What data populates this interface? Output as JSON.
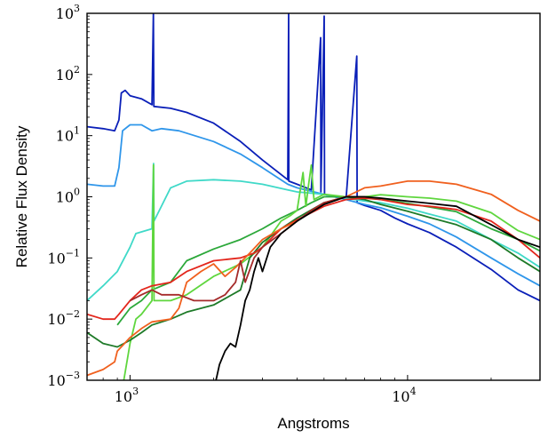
{
  "chart_data": {
    "type": "line",
    "title": "",
    "xlabel": "Angstroms",
    "ylabel": "Relative Flux Density",
    "x_scale": "log",
    "y_scale": "log",
    "xlim": [
      700,
      30000
    ],
    "ylim": [
      0.001,
      1000
    ],
    "grid": false,
    "legend": "none",
    "x_ticks": [
      {
        "value": 1000,
        "base": "10",
        "exp": "3"
      },
      {
        "value": 10000,
        "base": "10",
        "exp": "4"
      }
    ],
    "y_ticks": [
      {
        "value": 0.001,
        "base": "10",
        "exp": "−3"
      },
      {
        "value": 0.01,
        "base": "10",
        "exp": "−2"
      },
      {
        "value": 0.1,
        "base": "10",
        "exp": "−1"
      },
      {
        "value": 1,
        "base": "10",
        "exp": "0"
      },
      {
        "value": 10,
        "base": "10",
        "exp": "1"
      },
      {
        "value": 100,
        "base": "10",
        "exp": "2"
      },
      {
        "value": 1000,
        "base": "10",
        "exp": "3"
      }
    ],
    "series": [
      {
        "color": "#0a1fb8",
        "points": [
          [
            700,
            14
          ],
          [
            800,
            13
          ],
          [
            880,
            12
          ],
          [
            912,
            18
          ],
          [
            930,
            50
          ],
          [
            960,
            55
          ],
          [
            1000,
            45
          ],
          [
            1100,
            40
          ],
          [
            1200,
            32
          ],
          [
            1214,
            1000
          ],
          [
            1218,
            30
          ],
          [
            1400,
            28
          ],
          [
            1600,
            24
          ],
          [
            2000,
            16
          ],
          [
            2500,
            8
          ],
          [
            3000,
            4
          ],
          [
            3700,
            1.9
          ],
          [
            3727,
            1000
          ],
          [
            3735,
            1.8
          ],
          [
            4000,
            1.6
          ],
          [
            4500,
            1.3
          ],
          [
            4861,
            400
          ],
          [
            4870,
            1.2
          ],
          [
            5007,
            900
          ],
          [
            5020,
            1.1
          ],
          [
            5500,
            1
          ],
          [
            6000,
            0.9
          ],
          [
            6563,
            200
          ],
          [
            6580,
            0.8
          ],
          [
            7000,
            0.72
          ],
          [
            8000,
            0.6
          ],
          [
            9000,
            0.45
          ],
          [
            10000,
            0.36
          ],
          [
            12000,
            0.26
          ],
          [
            15000,
            0.15
          ],
          [
            20000,
            0.065
          ],
          [
            25000,
            0.03
          ],
          [
            30000,
            0.02
          ]
        ]
      },
      {
        "color": "#2f96ea",
        "points": [
          [
            700,
            1.6
          ],
          [
            800,
            1.5
          ],
          [
            880,
            1.5
          ],
          [
            912,
            3
          ],
          [
            940,
            12
          ],
          [
            1000,
            15
          ],
          [
            1100,
            15
          ],
          [
            1200,
            12
          ],
          [
            1300,
            13
          ],
          [
            1500,
            12
          ],
          [
            2000,
            8
          ],
          [
            2500,
            5
          ],
          [
            3000,
            3
          ],
          [
            3700,
            1.6
          ],
          [
            4000,
            1.4
          ],
          [
            5000,
            1.1
          ],
          [
            6000,
            0.9
          ],
          [
            7000,
            0.75
          ],
          [
            8000,
            0.66
          ],
          [
            10000,
            0.48
          ],
          [
            12000,
            0.36
          ],
          [
            15000,
            0.22
          ],
          [
            20000,
            0.1
          ],
          [
            25000,
            0.055
          ],
          [
            30000,
            0.035
          ]
        ]
      },
      {
        "color": "#3fd9c8",
        "points": [
          [
            700,
            0.02
          ],
          [
            800,
            0.035
          ],
          [
            900,
            0.06
          ],
          [
            1000,
            0.15
          ],
          [
            1050,
            0.25
          ],
          [
            1200,
            0.3
          ],
          [
            1216,
            3.5
          ],
          [
            1220,
            0.4
          ],
          [
            1400,
            1.4
          ],
          [
            1600,
            1.8
          ],
          [
            2000,
            1.9
          ],
          [
            2500,
            1.8
          ],
          [
            3000,
            1.6
          ],
          [
            3700,
            1.3
          ],
          [
            4000,
            1.2
          ],
          [
            5000,
            1.1
          ],
          [
            6000,
            0.95
          ],
          [
            7000,
            0.85
          ],
          [
            8000,
            0.8
          ],
          [
            10000,
            0.65
          ],
          [
            12000,
            0.52
          ],
          [
            15000,
            0.4
          ],
          [
            20000,
            0.2
          ],
          [
            25000,
            0.12
          ],
          [
            30000,
            0.07
          ]
        ]
      },
      {
        "color": "#2ca83a",
        "points": [
          [
            900,
            0.008
          ],
          [
            1000,
            0.015
          ],
          [
            1100,
            0.02
          ],
          [
            1200,
            0.03
          ],
          [
            1400,
            0.04
          ],
          [
            1600,
            0.09
          ],
          [
            2000,
            0.14
          ],
          [
            2500,
            0.2
          ],
          [
            3000,
            0.3
          ],
          [
            3500,
            0.45
          ],
          [
            4000,
            0.6
          ],
          [
            4500,
            0.8
          ],
          [
            5000,
            1
          ],
          [
            6000,
            1
          ],
          [
            7000,
            0.98
          ],
          [
            8000,
            0.93
          ],
          [
            10000,
            0.78
          ],
          [
            12000,
            0.68
          ],
          [
            15000,
            0.57
          ],
          [
            20000,
            0.3
          ],
          [
            25000,
            0.2
          ],
          [
            30000,
            0.13
          ]
        ]
      },
      {
        "color": "#5fd63e",
        "points": [
          [
            950,
            0.001
          ],
          [
            1000,
            0.004
          ],
          [
            1050,
            0.01
          ],
          [
            1100,
            0.012
          ],
          [
            1200,
            0.02
          ],
          [
            1215,
            3.3
          ],
          [
            1220,
            0.02
          ],
          [
            1400,
            0.02
          ],
          [
            1600,
            0.025
          ],
          [
            2000,
            0.05
          ],
          [
            2500,
            0.08
          ],
          [
            3000,
            0.15
          ],
          [
            3500,
            0.4
          ],
          [
            3800,
            0.5
          ],
          [
            4000,
            0.6
          ],
          [
            4200,
            2.5
          ],
          [
            4300,
            0.7
          ],
          [
            4400,
            1.6
          ],
          [
            4500,
            3.3
          ],
          [
            4600,
            0.9
          ],
          [
            5000,
            1.1
          ],
          [
            6000,
            1
          ],
          [
            7000,
            1
          ],
          [
            8000,
            1.08
          ],
          [
            10000,
            1
          ],
          [
            12000,
            0.95
          ],
          [
            15000,
            0.85
          ],
          [
            20000,
            0.55
          ],
          [
            25000,
            0.28
          ],
          [
            30000,
            0.2
          ]
        ]
      },
      {
        "color": "#1e7a28",
        "points": [
          [
            700,
            0.006
          ],
          [
            800,
            0.004
          ],
          [
            900,
            0.0035
          ],
          [
            1000,
            0.0045
          ],
          [
            1100,
            0.006
          ],
          [
            1200,
            0.008
          ],
          [
            1400,
            0.01
          ],
          [
            1600,
            0.013
          ],
          [
            2000,
            0.017
          ],
          [
            2500,
            0.03
          ],
          [
            2700,
            0.1
          ],
          [
            3000,
            0.18
          ],
          [
            3500,
            0.3
          ],
          [
            4000,
            0.45
          ],
          [
            5000,
            0.8
          ],
          [
            6000,
            1
          ],
          [
            7000,
            0.9
          ],
          [
            8000,
            0.75
          ],
          [
            10000,
            0.58
          ],
          [
            12000,
            0.46
          ],
          [
            15000,
            0.35
          ],
          [
            20000,
            0.2
          ],
          [
            25000,
            0.1
          ],
          [
            30000,
            0.06
          ]
        ]
      },
      {
        "color": "#e3261c",
        "points": [
          [
            700,
            0.012
          ],
          [
            800,
            0.01
          ],
          [
            880,
            0.01
          ],
          [
            912,
            0.012
          ],
          [
            1000,
            0.02
          ],
          [
            1100,
            0.03
          ],
          [
            1200,
            0.035
          ],
          [
            1400,
            0.04
          ],
          [
            1600,
            0.06
          ],
          [
            2000,
            0.09
          ],
          [
            2500,
            0.1
          ],
          [
            2800,
            0.12
          ],
          [
            3000,
            0.15
          ],
          [
            3500,
            0.3
          ],
          [
            4000,
            0.42
          ],
          [
            5000,
            0.7
          ],
          [
            6000,
            0.9
          ],
          [
            7000,
            0.95
          ],
          [
            8000,
            0.9
          ],
          [
            10000,
            0.75
          ],
          [
            12000,
            0.7
          ],
          [
            15000,
            0.62
          ],
          [
            20000,
            0.4
          ],
          [
            25000,
            0.2
          ],
          [
            30000,
            0.1
          ]
        ]
      },
      {
        "color": "#f0601e",
        "points": [
          [
            700,
            0.0012
          ],
          [
            800,
            0.0015
          ],
          [
            880,
            0.002
          ],
          [
            900,
            0.003
          ],
          [
            1000,
            0.005
          ],
          [
            1100,
            0.007
          ],
          [
            1200,
            0.009
          ],
          [
            1400,
            0.01
          ],
          [
            1500,
            0.015
          ],
          [
            1600,
            0.04
          ],
          [
            1800,
            0.06
          ],
          [
            2000,
            0.08
          ],
          [
            2200,
            0.05
          ],
          [
            2400,
            0.07
          ],
          [
            2700,
            0.12
          ],
          [
            3000,
            0.2
          ],
          [
            3500,
            0.3
          ],
          [
            4000,
            0.4
          ],
          [
            5000,
            0.8
          ],
          [
            6000,
            1
          ],
          [
            7000,
            1.4
          ],
          [
            8000,
            1.5
          ],
          [
            10000,
            1.8
          ],
          [
            12000,
            1.8
          ],
          [
            15000,
            1.6
          ],
          [
            20000,
            1.1
          ],
          [
            25000,
            0.6
          ],
          [
            30000,
            0.4
          ]
        ]
      },
      {
        "color": "#a52a2a",
        "points": [
          [
            1000,
            0.02
          ],
          [
            1100,
            0.025
          ],
          [
            1200,
            0.03
          ],
          [
            1300,
            0.025
          ],
          [
            1500,
            0.025
          ],
          [
            1700,
            0.02
          ],
          [
            2000,
            0.02
          ],
          [
            2200,
            0.025
          ],
          [
            2400,
            0.04
          ],
          [
            2500,
            0.09
          ],
          [
            2600,
            0.04
          ],
          [
            2800,
            0.1
          ],
          [
            3000,
            0.15
          ],
          [
            3500,
            0.25
          ],
          [
            4000,
            0.4
          ],
          [
            4500,
            0.6
          ],
          [
            5000,
            0.8
          ],
          [
            6000,
            1
          ],
          [
            7000,
            1
          ],
          [
            8000,
            0.9
          ]
        ]
      },
      {
        "color": "#000000",
        "points": [
          [
            2040,
            0.001
          ],
          [
            2100,
            0.0018
          ],
          [
            2200,
            0.003
          ],
          [
            2300,
            0.004
          ],
          [
            2400,
            0.0035
          ],
          [
            2500,
            0.008
          ],
          [
            2600,
            0.02
          ],
          [
            2700,
            0.03
          ],
          [
            2800,
            0.06
          ],
          [
            2900,
            0.1
          ],
          [
            3000,
            0.06
          ],
          [
            3200,
            0.15
          ],
          [
            3500,
            0.25
          ],
          [
            4000,
            0.4
          ],
          [
            5000,
            0.75
          ],
          [
            6000,
            1
          ],
          [
            7000,
            1
          ],
          [
            8000,
            0.95
          ],
          [
            10000,
            0.85
          ],
          [
            12000,
            0.78
          ],
          [
            15000,
            0.7
          ],
          [
            20000,
            0.35
          ],
          [
            25000,
            0.2
          ],
          [
            30000,
            0.15
          ]
        ]
      }
    ]
  }
}
